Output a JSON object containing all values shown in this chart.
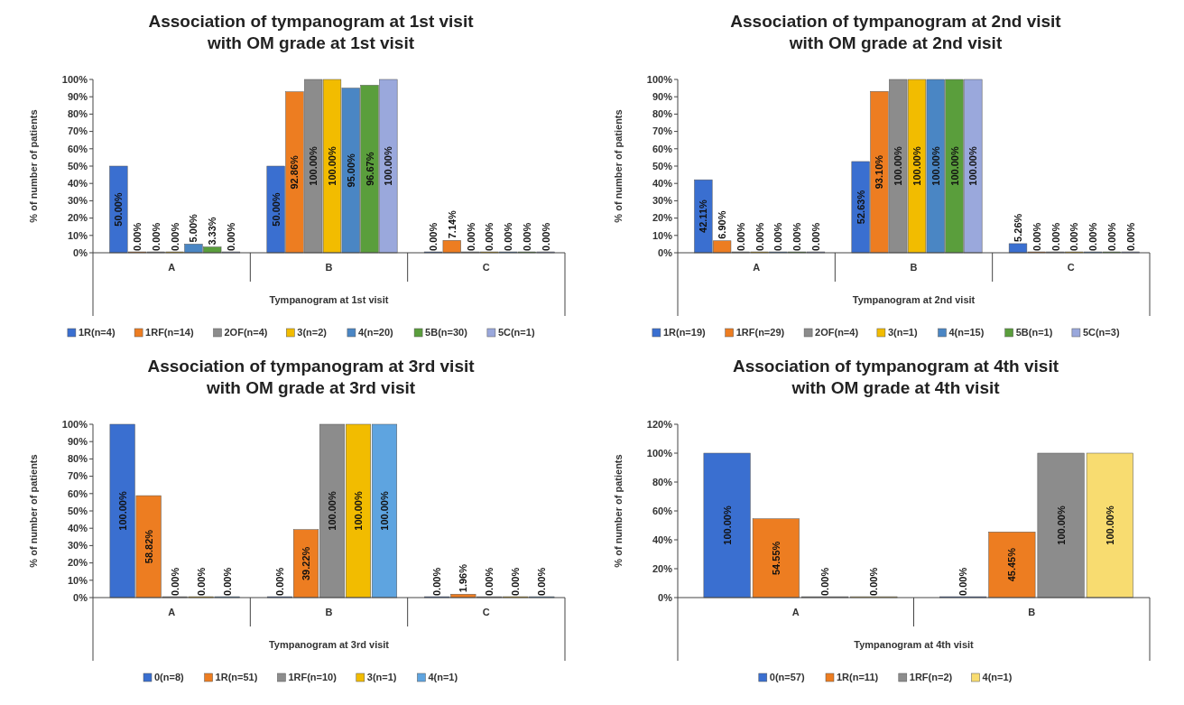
{
  "chart_data": [
    {
      "type": "bar",
      "title": "Association of tympanogram at 1st visit with OM grade at 1st visit",
      "xlabel": "Tympanogram at 1st visit",
      "ylabel": "% of number of patients",
      "categories": [
        "A",
        "B",
        "C"
      ],
      "ylim": [
        0,
        100
      ],
      "yticks": [
        {
          "value": 0,
          "label": "0%"
        },
        {
          "value": 10,
          "label": "10%"
        },
        {
          "value": 20,
          "label": "20%"
        },
        {
          "value": 30,
          "label": "30%"
        },
        {
          "value": 40,
          "label": "40%"
        },
        {
          "value": 50,
          "label": "50%"
        },
        {
          "value": 60,
          "label": "60%"
        },
        {
          "value": 70,
          "label": "70%"
        },
        {
          "value": 80,
          "label": "80%"
        },
        {
          "value": 90,
          "label": "90%"
        },
        {
          "value": 100,
          "label": "100%"
        }
      ],
      "legend": "bottom",
      "grid": false,
      "series": [
        {
          "name": "1R(n=4)",
          "color": "#3a6fd0",
          "values": [
            50,
            50,
            0
          ],
          "value_labels": [
            "50.00%",
            "50.00%",
            "0.00%"
          ]
        },
        {
          "name": "1RF(n=14)",
          "color": "#ed7d21",
          "values": [
            0,
            92.86,
            7.14
          ],
          "value_labels": [
            "0.00%",
            "92.86%",
            "7.14%"
          ]
        },
        {
          "name": "2OF(n=4)",
          "color": "#8c8c8c",
          "values": [
            0,
            100,
            0
          ],
          "value_labels": [
            "0.00%",
            "100.00%",
            "0.00%"
          ]
        },
        {
          "name": "3(n=2)",
          "color": "#f2bc00",
          "values": [
            0,
            100,
            0
          ],
          "value_labels": [
            "0.00%",
            "100.00%",
            "0.00%"
          ]
        },
        {
          "name": "4(n=20)",
          "color": "#4a86c4",
          "values": [
            5,
            95,
            0
          ],
          "value_labels": [
            "5.00%",
            "95.00%",
            "0.00%"
          ]
        },
        {
          "name": "5B(n=30)",
          "color": "#5a9e3c",
          "values": [
            3.33,
            96.67,
            0
          ],
          "value_labels": [
            "3.33%",
            "96.67%",
            "0.00%"
          ]
        },
        {
          "name": "5C(n=1)",
          "color": "#9aa8dc",
          "values": [
            0,
            100,
            0
          ],
          "value_labels": [
            "0.00%",
            "100.00%",
            "0.00%"
          ]
        }
      ]
    },
    {
      "type": "bar",
      "title": "Association of tympanogram at 2nd visit with OM grade at 2nd visit",
      "xlabel": "Tympanogram at 2nd visit",
      "ylabel": "% of number of patients",
      "categories": [
        "A",
        "B",
        "C"
      ],
      "ylim": [
        0,
        100
      ],
      "yticks": [
        {
          "value": 0,
          "label": "0%"
        },
        {
          "value": 10,
          "label": "10%"
        },
        {
          "value": 20,
          "label": "20%"
        },
        {
          "value": 30,
          "label": "30%"
        },
        {
          "value": 40,
          "label": "40%"
        },
        {
          "value": 50,
          "label": "50%"
        },
        {
          "value": 60,
          "label": "60%"
        },
        {
          "value": 70,
          "label": "70%"
        },
        {
          "value": 80,
          "label": "80%"
        },
        {
          "value": 90,
          "label": "90%"
        },
        {
          "value": 100,
          "label": "100%"
        }
      ],
      "legend": "bottom",
      "grid": false,
      "series": [
        {
          "name": "1R(n=19)",
          "color": "#3a6fd0",
          "values": [
            42.11,
            52.63,
            5.26
          ],
          "value_labels": [
            "42.11%",
            "52.63%",
            "5.26%"
          ]
        },
        {
          "name": "1RF(n=29)",
          "color": "#ed7d21",
          "values": [
            6.9,
            93.1,
            0
          ],
          "value_labels": [
            "6.90%",
            "93.10%",
            "0.00%"
          ]
        },
        {
          "name": "2OF(n=4)",
          "color": "#8c8c8c",
          "values": [
            0,
            100,
            0
          ],
          "value_labels": [
            "0.00%",
            "100.00%",
            "0.00%"
          ]
        },
        {
          "name": "3(n=1)",
          "color": "#f2bc00",
          "values": [
            0,
            100,
            0
          ],
          "value_labels": [
            "0.00%",
            "100.00%",
            "0.00%"
          ]
        },
        {
          "name": "4(n=15)",
          "color": "#4a86c4",
          "values": [
            0,
            100,
            0
          ],
          "value_labels": [
            "0.00%",
            "100.00%",
            "0.00%"
          ]
        },
        {
          "name": "5B(n=1)",
          "color": "#5a9e3c",
          "values": [
            0,
            100,
            0
          ],
          "value_labels": [
            "0.00%",
            "100.00%",
            "0.00%"
          ]
        },
        {
          "name": "5C(n=3)",
          "color": "#9aa8dc",
          "values": [
            0,
            100,
            0
          ],
          "value_labels": [
            "0.00%",
            "100.00%",
            "0.00%"
          ]
        }
      ]
    },
    {
      "type": "bar",
      "title": "Association of tympanogram at 3rd visit with OM grade at 3rd visit",
      "xlabel": "Tympanogram at 3rd visit",
      "ylabel": "% of number of patients",
      "categories": [
        "A",
        "B",
        "C"
      ],
      "ylim": [
        0,
        100
      ],
      "yticks": [
        {
          "value": 0,
          "label": "0%"
        },
        {
          "value": 10,
          "label": "10%"
        },
        {
          "value": 20,
          "label": "20%"
        },
        {
          "value": 30,
          "label": "30%"
        },
        {
          "value": 40,
          "label": "40%"
        },
        {
          "value": 50,
          "label": "50%"
        },
        {
          "value": 60,
          "label": "60%"
        },
        {
          "value": 70,
          "label": "70%"
        },
        {
          "value": 80,
          "label": "80%"
        },
        {
          "value": 90,
          "label": "90%"
        },
        {
          "value": 100,
          "label": "100%"
        }
      ],
      "legend": "bottom",
      "grid": false,
      "series": [
        {
          "name": "0(n=8)",
          "color": "#3a6fd0",
          "values": [
            100,
            0,
            0
          ],
          "value_labels": [
            "100.00%",
            "0.00%",
            "0.00%"
          ]
        },
        {
          "name": "1R(n=51)",
          "color": "#ed7d21",
          "values": [
            58.82,
            39.22,
            1.96
          ],
          "value_labels": [
            "58.82%",
            "39.22%",
            "1.96%"
          ]
        },
        {
          "name": "1RF(n=10)",
          "color": "#8c8c8c",
          "values": [
            0,
            100,
            0
          ],
          "value_labels": [
            "0.00%",
            "100.00%",
            "0.00%"
          ]
        },
        {
          "name": "3(n=1)",
          "color": "#f2bc00",
          "values": [
            0,
            100,
            0
          ],
          "value_labels": [
            "0.00%",
            "100.00%",
            "0.00%"
          ]
        },
        {
          "name": "4(n=1)",
          "color": "#5ea4e0",
          "values": [
            0,
            100,
            0
          ],
          "value_labels": [
            "0.00%",
            "100.00%",
            "0.00%"
          ]
        }
      ]
    },
    {
      "type": "bar",
      "title": "Association of tympanogram at 4th visit with OM grade at 4th visit",
      "xlabel": "Tympanogram at 4th visit",
      "ylabel": "% of number of patients",
      "categories": [
        "A",
        "B"
      ],
      "ylim": [
        0,
        120
      ],
      "yticks": [
        {
          "value": 0,
          "label": "0%"
        },
        {
          "value": 20,
          "label": "20%"
        },
        {
          "value": 40,
          "label": "40%"
        },
        {
          "value": 60,
          "label": "60%"
        },
        {
          "value": 80,
          "label": "80%"
        },
        {
          "value": 100,
          "label": "100%"
        },
        {
          "value": 120,
          "label": "120%"
        }
      ],
      "legend": "bottom",
      "grid": false,
      "series": [
        {
          "name": "0(n=57)",
          "color": "#3a6fd0",
          "values": [
            100,
            0
          ],
          "value_labels": [
            "100.00%",
            "0.00%"
          ]
        },
        {
          "name": "1R(n=11)",
          "color": "#ed7d21",
          "values": [
            54.55,
            45.45
          ],
          "value_labels": [
            "54.55%",
            "45.45%"
          ]
        },
        {
          "name": "1RF(n=2)",
          "color": "#8c8c8c",
          "values": [
            0,
            100
          ],
          "value_labels": [
            "0.00%",
            "100.00%"
          ]
        },
        {
          "name": "4(n=1)",
          "color": "#f8dc70",
          "values": [
            0,
            100
          ],
          "value_labels": [
            "0.00%",
            "100.00%"
          ]
        }
      ]
    }
  ]
}
